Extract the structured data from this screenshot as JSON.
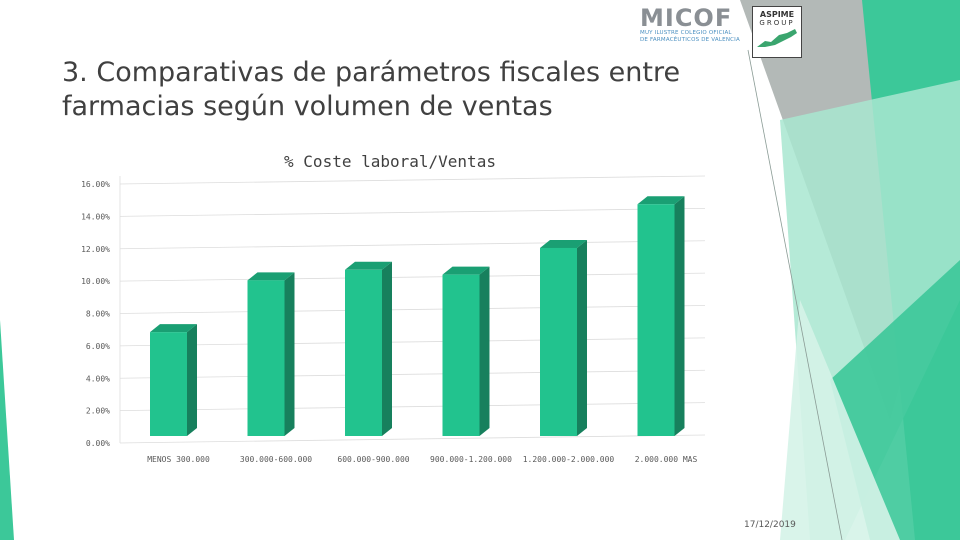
{
  "slide": {
    "title_line1": "3. Comparativas de parámetros fiscales entre",
    "title_line2": "farmacias según volumen de ventas",
    "date": "17/12/2019"
  },
  "logos": {
    "micof": "MICOF",
    "micof_sub1": "MUY ILUSTRE COLEGIO OFICIAL",
    "micof_sub2": "DE FARMACÉUTICOS DE VALENCIA",
    "aspime": "ASPIME",
    "aspime_sub": "GROUP"
  },
  "colors": {
    "bar_front": "#22c38e",
    "bar_side": "#17805d",
    "bar_top": "#1a9f73",
    "deco_green": "#3cc899",
    "deco_light": "#a8e6d0",
    "deco_gray": "#b3b9b7"
  },
  "chart_data": {
    "type": "bar",
    "title": "% Coste laboral/Ventas",
    "categories": [
      "MENOS 300.000",
      "300.000-600.000",
      "600.000-900.000",
      "900.000-1.200.000",
      "1.200.000-2.000.000",
      "2.000.000 MAS"
    ],
    "values": [
      0.0685,
      0.1005,
      0.107,
      0.104,
      0.1205,
      0.1475
    ],
    "ylim": [
      0,
      0.16
    ],
    "yticks": [
      "0.00%",
      "2.00%",
      "4.00%",
      "6.00%",
      "8.00%",
      "10.00%",
      "12.00%",
      "14.00%",
      "16.00%"
    ],
    "grid": true,
    "legend": "none",
    "style": "3d-column"
  }
}
